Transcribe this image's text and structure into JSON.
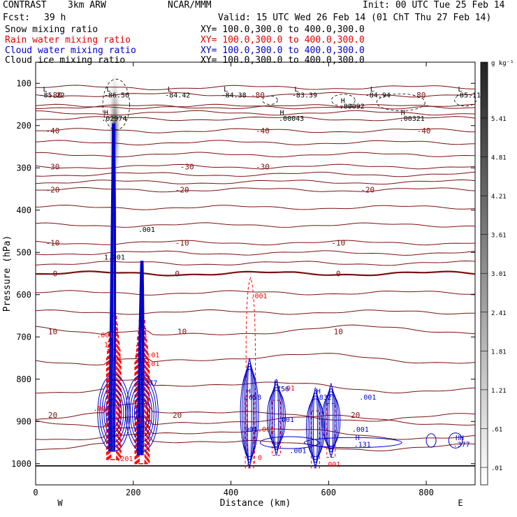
{
  "header": {
    "model": "CONTRAST",
    "resolution": "3km ARW",
    "org": "NCAR/MMM",
    "init": "Init: 00 UTC Tue 25 Feb 14",
    "fcst_label": "Fcst:",
    "fcst_value": "39 h",
    "valid": "Valid: 15 UTC Wed 26 Feb 14 (01 ChT Thu 27 Feb 14)"
  },
  "fields": [
    {
      "name": "Snow mixing ratio",
      "xy": "XY= 100.0,300.0 to 400.0,300.0",
      "color": "#000000"
    },
    {
      "name": "Rain water mixing ratio",
      "xy": "XY= 100.0,300.0 to 400.0,300.0",
      "color": "#ff0000"
    },
    {
      "name": "Cloud water mixing ratio",
      "xy": "XY= 100.0,300.0 to 400.0,300.0",
      "color": "#0000cc"
    },
    {
      "name": "Cloud ice mixing ratio",
      "xy": "XY= 100.0,300.0 to 400.0,300.0",
      "color": "#000000"
    }
  ],
  "colors": {
    "temperature": "#7a1010",
    "rain": "#ff0000",
    "cloud_water": "#0000cc",
    "ice": "#000000"
  },
  "chart_data": {
    "type": "cross-section",
    "xlabel": "Distance (km)",
    "ylabel": "Pressure (hPa)",
    "xlim": [
      0,
      900
    ],
    "ylim": [
      1050,
      50
    ],
    "x_ticks": [
      0,
      200,
      400,
      600,
      800
    ],
    "y_ticks": [
      100,
      200,
      300,
      400,
      500,
      600,
      700,
      800,
      900,
      1000
    ],
    "x_end_labels": {
      "left": "W",
      "right": "E"
    },
    "colorbar": {
      "unit": "g kg⁻¹",
      "labels": [
        "5.41",
        "4.81",
        "4.21",
        "3.61",
        "3.01",
        "2.41",
        "1.81",
        "1.21",
        ".61",
        ".01"
      ]
    },
    "temperature_levels": [
      {
        "p": 127,
        "label": "-80"
      },
      {
        "p": 212,
        "label": "-40"
      },
      {
        "p": 297,
        "label": "-30"
      },
      {
        "p": 352,
        "label": "-20"
      },
      {
        "p": 477,
        "label": "-10"
      },
      {
        "p": 550,
        "label": "0"
      },
      {
        "p": 687,
        "label": "10"
      },
      {
        "p": 885,
        "label": "20"
      }
    ],
    "temperature_labels": [
      {
        "x": 40,
        "p": 128,
        "text": "-80"
      },
      {
        "x": 455,
        "p": 128,
        "text": "-80"
      },
      {
        "x": 785,
        "p": 128,
        "text": "-80"
      },
      {
        "x": 35,
        "p": 212,
        "text": "-40"
      },
      {
        "x": 465,
        "p": 212,
        "text": "-40"
      },
      {
        "x": 795,
        "p": 212,
        "text": "-40"
      },
      {
        "x": 35,
        "p": 297,
        "text": "-30"
      },
      {
        "x": 310,
        "p": 297,
        "text": "-30"
      },
      {
        "x": 465,
        "p": 297,
        "text": "-30"
      },
      {
        "x": 35,
        "p": 352,
        "text": "-20"
      },
      {
        "x": 300,
        "p": 352,
        "text": "-20"
      },
      {
        "x": 680,
        "p": 352,
        "text": "-20"
      },
      {
        "x": 35,
        "p": 477,
        "text": "-10"
      },
      {
        "x": 300,
        "p": 477,
        "text": "-10"
      },
      {
        "x": 620,
        "p": 477,
        "text": "-10"
      },
      {
        "x": 40,
        "p": 550,
        "text": "0"
      },
      {
        "x": 290,
        "p": 550,
        "text": "0"
      },
      {
        "x": 620,
        "p": 550,
        "text": "0"
      },
      {
        "x": 35,
        "p": 687,
        "text": "10"
      },
      {
        "x": 300,
        "p": 687,
        "text": "10"
      },
      {
        "x": 620,
        "p": 687,
        "text": "10"
      },
      {
        "x": 35,
        "p": 885,
        "text": "20"
      },
      {
        "x": 290,
        "p": 885,
        "text": "20"
      },
      {
        "x": 655,
        "p": 885,
        "text": "20"
      }
    ],
    "extrema": [
      {
        "x": 15,
        "p": 113,
        "text": "L"
      },
      {
        "x": 8,
        "p": 127,
        "text": "-85.22"
      },
      {
        "x": 145,
        "p": 113,
        "text": "L"
      },
      {
        "x": 140,
        "p": 127,
        "text": "-86.56"
      },
      {
        "x": 270,
        "p": 113,
        "text": "L"
      },
      {
        "x": 265,
        "p": 127,
        "text": "-84.42"
      },
      {
        "x": 385,
        "p": 113,
        "text": "L"
      },
      {
        "x": 380,
        "p": 127,
        "text": "-84.38"
      },
      {
        "x": 530,
        "p": 113,
        "text": "L"
      },
      {
        "x": 525,
        "p": 127,
        "text": "-83.39"
      },
      {
        "x": 685,
        "p": 113,
        "text": "L"
      },
      {
        "x": 675,
        "p": 127,
        "text": "-84.94"
      },
      {
        "x": 865,
        "p": 113,
        "text": "L"
      },
      {
        "x": 860,
        "p": 127,
        "text": "-85.11"
      },
      {
        "x": 140,
        "p": 168,
        "text": "H"
      },
      {
        "x": 135,
        "p": 182,
        "text": ".02974"
      },
      {
        "x": 500,
        "p": 168,
        "text": "H"
      },
      {
        "x": 498,
        "p": 182,
        "text": ".00043"
      },
      {
        "x": 625,
        "p": 140,
        "text": "H"
      },
      {
        "x": 622,
        "p": 153,
        "text": ".00092"
      },
      {
        "x": 748,
        "p": 168,
        "text": "H"
      },
      {
        "x": 745,
        "p": 182,
        "text": ".00321"
      },
      {
        "x": 210,
        "p": 445,
        "text": ".001"
      },
      {
        "x": 140,
        "p": 510,
        "text": "1.001"
      }
    ],
    "cloud_water_labels": [
      {
        "x": 432,
        "p": 828,
        "text": "H"
      },
      {
        "x": 428,
        "p": 842,
        "text": ".658"
      },
      {
        "x": 488,
        "p": 808,
        "text": "H"
      },
      {
        "x": 485,
        "p": 822,
        "text": ".756"
      },
      {
        "x": 575,
        "p": 828,
        "text": "H"
      },
      {
        "x": 572,
        "p": 842,
        "text": ".832"
      },
      {
        "x": 663,
        "p": 842,
        "text": ".001"
      },
      {
        "x": 648,
        "p": 918,
        "text": ".001"
      },
      {
        "x": 655,
        "p": 938,
        "text": "H"
      },
      {
        "x": 652,
        "p": 953,
        "text": ".131"
      },
      {
        "x": 860,
        "p": 938,
        "text": "HH"
      },
      {
        "x": 855,
        "p": 953,
        "text": ".377"
      },
      {
        "x": 420,
        "p": 918,
        "text": ".001"
      },
      {
        "x": 520,
        "p": 968,
        "text": ".001"
      },
      {
        "x": 495,
        "p": 895,
        "text": ".001"
      },
      {
        "x": 215,
        "p": 808,
        "text": ".377"
      }
    ],
    "rain_labels": [
      {
        "x": 440,
        "p": 602,
        "text": ".001"
      },
      {
        "x": 455,
        "p": 918,
        "text": ".001"
      },
      {
        "x": 455,
        "p": 985,
        "text": "0"
      },
      {
        "x": 590,
        "p": 1000,
        "text": ".001"
      },
      {
        "x": 505,
        "p": 820,
        "text": ".01"
      },
      {
        "x": 228,
        "p": 742,
        "text": ".01"
      },
      {
        "x": 228,
        "p": 762,
        "text": ".01"
      },
      {
        "x": 165,
        "p": 987,
        "text": ".201"
      },
      {
        "x": 200,
        "p": 898,
        "text": ".2"
      },
      {
        "x": 125,
        "p": 695,
        "text": ".001"
      },
      {
        "x": 118,
        "p": 868,
        "text": ".001"
      },
      {
        "x": 140,
        "p": 718,
        "text": "1"
      }
    ],
    "convective_towers": [
      {
        "x": 160,
        "p_top": 115,
        "p_bottom": 990
      },
      {
        "x": 218,
        "p_top": 440,
        "p_bottom": 1000
      }
    ],
    "shallow_cells": [
      {
        "x": 438,
        "p_top": 730,
        "p_bottom": 990
      },
      {
        "x": 493,
        "p_top": 780,
        "p_bottom": 960
      },
      {
        "x": 573,
        "p_top": 800,
        "p_bottom": 990
      },
      {
        "x": 605,
        "p_top": 790,
        "p_bottom": 965
      }
    ]
  }
}
